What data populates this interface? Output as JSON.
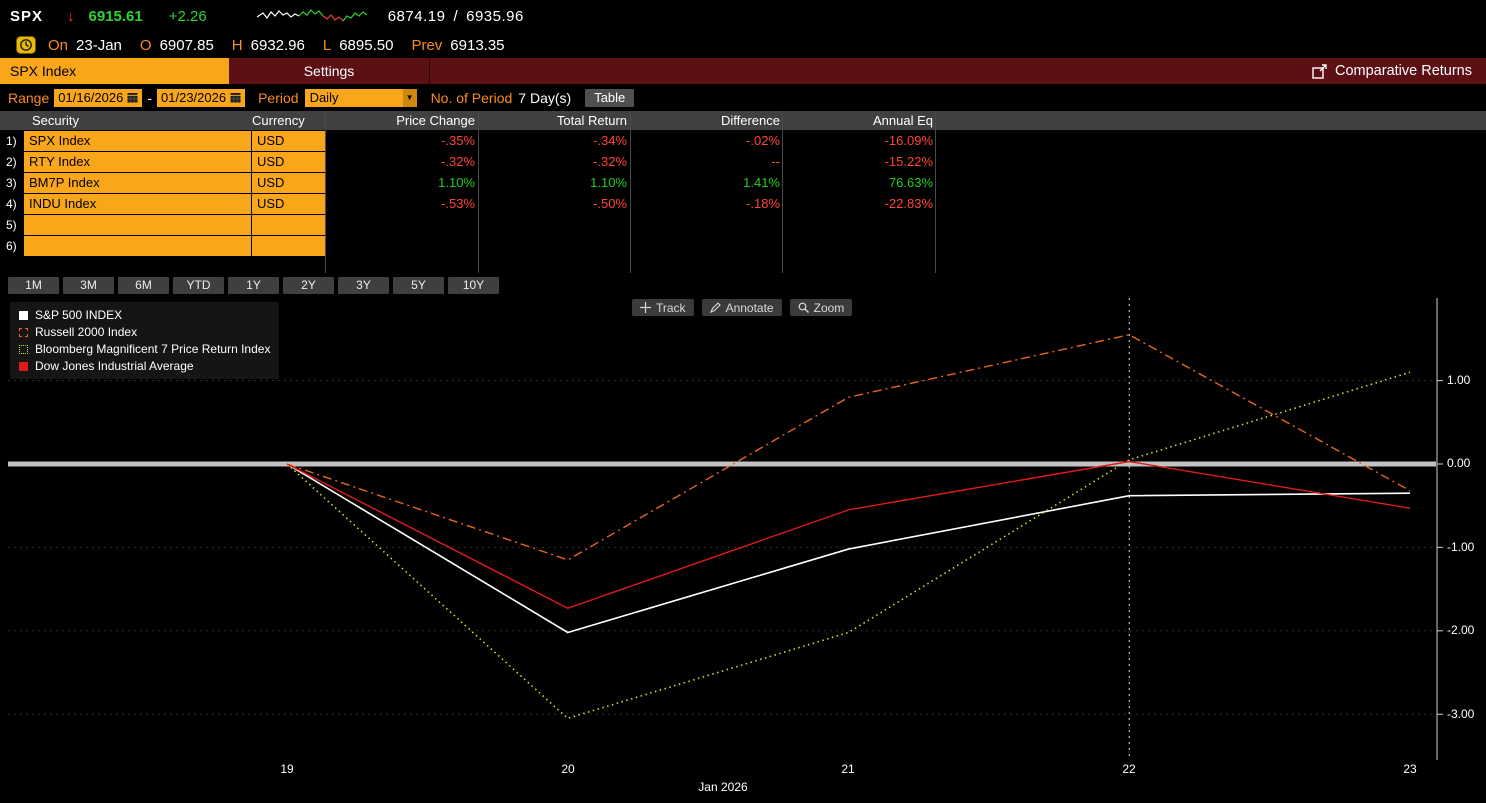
{
  "colors": {
    "background": "#000000",
    "amber": "#faa61a",
    "tab_strip_red": "#5c1013",
    "label_orange": "#fb8b1e",
    "positive_green": "#1ecf1e",
    "negative_red": "#ff4438",
    "table_header_bg": "#404040",
    "button_gray": "#3f3f3f",
    "zero_line": "#c2c2c2"
  },
  "quote_bar": {
    "ticker": "SPX",
    "direction_arrow": "↓",
    "last_price": "6915.61",
    "net_change": "+2.26",
    "range_low": "6874.19",
    "range_separator": "/",
    "range_high": "6935.96"
  },
  "ohlc_bar": {
    "on_label": "On",
    "date": "23-Jan",
    "open_label": "O",
    "open": "6907.85",
    "high_label": "H",
    "high": "6932.96",
    "low_label": "L",
    "low": "6895.50",
    "prev_label": "Prev",
    "prev_close": "6913.35"
  },
  "tab_strip": {
    "security_tab": "SPX Index",
    "settings_tab": "Settings",
    "function_title": "Comparative Returns"
  },
  "controls": {
    "range_label": "Range",
    "range_start": "01/16/2026",
    "range_dash": "-",
    "range_end": "01/23/2026",
    "period_label": "Period",
    "period_value": "Daily",
    "num_period_label": "No. of Period",
    "num_period_value": "7 Day(s)",
    "table_button": "Table"
  },
  "table": {
    "headers": {
      "security": "Security",
      "currency": "Currency",
      "price_change": "Price Change",
      "total_return": "Total Return",
      "difference": "Difference",
      "annual_eq": "Annual Eq"
    },
    "rows": [
      {
        "num": "1)",
        "security": "SPX Index",
        "currency": "USD",
        "price_change": "-.35%",
        "total_return": "-.34%",
        "difference": "-.02%",
        "annual_eq": "-16.09%",
        "tone": "negative"
      },
      {
        "num": "2)",
        "security": "RTY Index",
        "currency": "USD",
        "price_change": "-.32%",
        "total_return": "-.32%",
        "difference": "--",
        "annual_eq": "-15.22%",
        "tone": "negative"
      },
      {
        "num": "3)",
        "security": "BM7P Index",
        "currency": "USD",
        "price_change": "1.10%",
        "total_return": "1.10%",
        "difference": "1.41%",
        "annual_eq": "76.63%",
        "tone": "positive"
      },
      {
        "num": "4)",
        "security": "INDU Index",
        "currency": "USD",
        "price_change": "-.53%",
        "total_return": "-.50%",
        "difference": "-.18%",
        "annual_eq": "-22.83%",
        "tone": "negative"
      },
      {
        "num": "5)",
        "security": "",
        "currency": "",
        "price_change": "",
        "total_return": "",
        "difference": "",
        "annual_eq": "",
        "tone": "empty"
      },
      {
        "num": "6)",
        "security": "",
        "currency": "",
        "price_change": "",
        "total_return": "",
        "difference": "",
        "annual_eq": "",
        "tone": "empty"
      }
    ]
  },
  "period_buttons": [
    "1M",
    "3M",
    "6M",
    "YTD",
    "1Y",
    "2Y",
    "3Y",
    "5Y",
    "10Y"
  ],
  "chart_toolbar": {
    "track": "Track",
    "annotate": "Annotate",
    "zoom": "Zoom"
  },
  "chart_data": {
    "type": "line",
    "title": "Comparative Returns (%)",
    "x_values": [
      19,
      20,
      21,
      22,
      23
    ],
    "x_labels": [
      "19",
      "20",
      "21",
      "22",
      "23"
    ],
    "x_axis_title": "Jan 2026",
    "y_ticks": [
      "1.00",
      "0.00",
      "-1.00",
      "-2.00",
      "-3.00"
    ],
    "y_tick_values": [
      1.0,
      0.0,
      -1.0,
      -2.0,
      -3.0
    ],
    "ylim": [
      -3.55,
      2.0
    ],
    "y_axis_side": "right",
    "grid": "horizontal-dotted",
    "legend_position": "top-left",
    "zero_line": true,
    "marker_x_index": 3,
    "series": [
      {
        "name": "S&P 500 INDEX",
        "color": "#ffffff",
        "dash": "solid",
        "width": 1.6,
        "values": [
          0,
          -2.02,
          -1.02,
          -0.38,
          -0.35
        ]
      },
      {
        "name": "Russell 2000 Index",
        "color": "#e8641b",
        "dash": "dashdot",
        "width": 1.4,
        "values": [
          0,
          -1.15,
          0.8,
          1.55,
          -0.32
        ]
      },
      {
        "name": "Bloomberg Magnificent 7 Price Return Index",
        "color": "#d3d923",
        "dash": "dotted",
        "width": 1.6,
        "values": [
          0,
          -3.05,
          -2.02,
          0.05,
          1.1
        ]
      },
      {
        "name": "Dow Jones Industrial Average",
        "color": "#e01a1a",
        "dash": "solid",
        "width": 1.4,
        "values": [
          0,
          -1.73,
          -0.55,
          0.03,
          -0.53
        ]
      }
    ]
  }
}
